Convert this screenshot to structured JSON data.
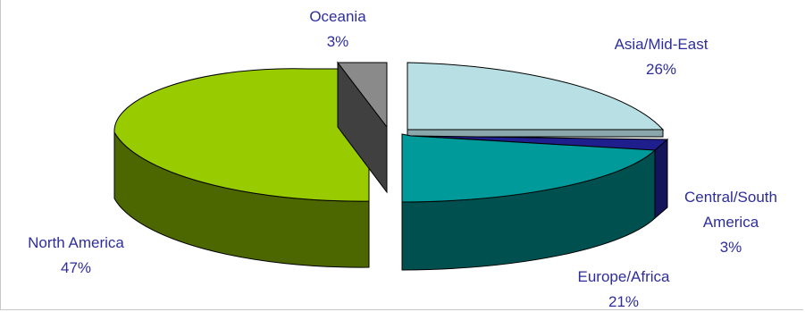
{
  "chart_data": {
    "type": "pie",
    "title": "",
    "slices": [
      {
        "label": "Asia/Mid-East",
        "value": 26,
        "value_label": "26%",
        "color": "#b8e0e4",
        "side_color": "#8aa8ab"
      },
      {
        "label": "Central/South America",
        "label_lines": [
          "Central/South",
          "America"
        ],
        "value": 3,
        "value_label": "3%",
        "color": "#1e1e8c",
        "side_color": "#14145a"
      },
      {
        "label": "Europe/Africa",
        "value": 21,
        "value_label": "21%",
        "color": "#009a9a",
        "side_color": "#005050"
      },
      {
        "label": "North America",
        "value": 47,
        "value_label": "47%",
        "color": "#99cc00",
        "side_color": "#4c6600"
      },
      {
        "label": "Oceania",
        "value": 3,
        "value_label": "3%",
        "color": "#8a8a8a",
        "side_color": "#404040"
      }
    ],
    "legend": "none",
    "grid": false
  }
}
